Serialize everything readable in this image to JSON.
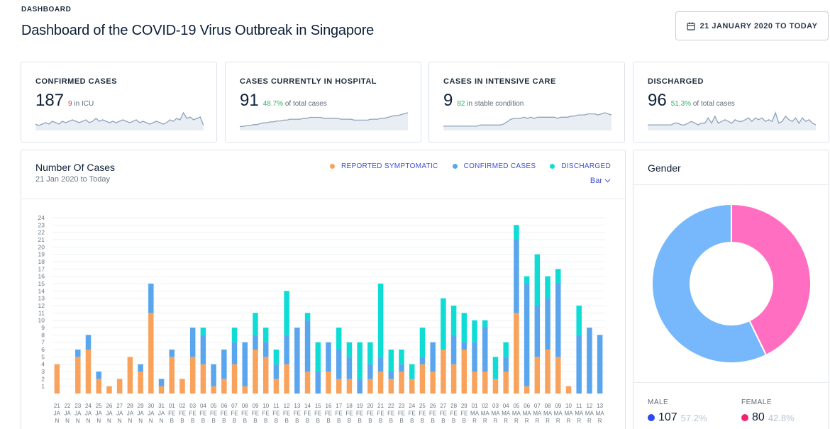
{
  "header": {
    "eyebrow": "DASHBOARD",
    "title": "Dashboard of the COVID-19 Virus Outbreak in Singapore",
    "date_range": "21 JANUARY 2020 TO TODAY"
  },
  "stats": [
    {
      "label": "CONFIRMED CASES",
      "value": "187",
      "highlight": "9",
      "highlight_color": "#e0304e",
      "suffix": "in ICU",
      "sparkline": [
        3,
        2,
        3,
        4,
        3,
        5,
        4,
        3,
        5,
        4,
        5,
        6,
        5,
        4,
        5,
        6,
        4,
        5,
        7,
        5,
        6,
        5,
        4,
        5,
        4,
        5,
        6,
        5,
        4,
        5,
        6,
        4,
        5,
        4,
        3,
        4,
        5,
        4,
        3,
        4,
        6,
        5,
        7,
        6,
        11,
        7,
        8,
        6,
        7,
        8,
        2
      ]
    },
    {
      "label": "CASES CURRENTLY IN HOSPITAL",
      "value": "91",
      "highlight": "48.7%",
      "highlight_color": "#2fb36b",
      "suffix": "of total cases",
      "sparkline": [
        2,
        2,
        3,
        3,
        4,
        4,
        5,
        6,
        6,
        7,
        7,
        8,
        8,
        9,
        9,
        10,
        10,
        10,
        10,
        11,
        11,
        12,
        12,
        12,
        12,
        11,
        11,
        11,
        11,
        11,
        10,
        10,
        10,
        10,
        9,
        9,
        9,
        9,
        9,
        10,
        10,
        10,
        11,
        11,
        12,
        13,
        14,
        14,
        15,
        16,
        17
      ]
    },
    {
      "label": "CASES IN INTENSIVE CARE",
      "value": "9",
      "highlight": "82",
      "highlight_color": "#2fb36b",
      "suffix": "in stable condition",
      "sparkline": [
        2,
        2,
        2,
        2,
        2,
        2,
        2,
        2,
        2,
        2,
        2,
        3,
        3,
        3,
        3,
        3,
        3,
        3,
        4,
        6,
        8,
        9,
        9,
        9,
        10,
        9,
        10,
        9,
        10,
        10,
        10,
        10,
        10,
        10,
        9,
        10,
        10,
        10,
        11,
        11,
        12,
        12,
        12,
        13,
        13,
        13,
        12,
        13,
        14,
        13,
        12
      ]
    },
    {
      "label": "DISCHARGED",
      "value": "96",
      "highlight": "51.3%",
      "highlight_color": "#2fb36b",
      "suffix": "of total cases",
      "sparkline": [
        2,
        2,
        2,
        2,
        2,
        2,
        2,
        2,
        3,
        3,
        2,
        2,
        3,
        4,
        3,
        2,
        3,
        3,
        6,
        3,
        7,
        3,
        4,
        5,
        4,
        3,
        5,
        4,
        4,
        5,
        6,
        4,
        6,
        5,
        6,
        4,
        5,
        4,
        9,
        3,
        4,
        7,
        5,
        4,
        6,
        3,
        6,
        4,
        5,
        3,
        2
      ]
    }
  ],
  "chart": {
    "title": "Number Of Cases",
    "subtitle": "21 Jan 2020 to Today",
    "type_label": "Bar",
    "legend": [
      {
        "label": "REPORTED SYMPTOMATIC",
        "color": "#f9a25c"
      },
      {
        "label": "CONFIRMED CASES",
        "color": "#5aa6ee"
      },
      {
        "label": "DISCHARGED",
        "color": "#10dcd6"
      }
    ]
  },
  "chart_data": {
    "type": "bar",
    "stacked": true,
    "ylim": [
      0,
      24
    ],
    "yticks": [
      1,
      2,
      3,
      4,
      5,
      6,
      7,
      8,
      9,
      10,
      11,
      12,
      13,
      14,
      15,
      16,
      17,
      18,
      19,
      20,
      21,
      22,
      23,
      24
    ],
    "grid": true,
    "legend_position": "top-right",
    "categories": [
      [
        "21",
        "JA",
        "N"
      ],
      [
        "22",
        "JA",
        "N"
      ],
      [
        "23",
        "JA",
        "N"
      ],
      [
        "24",
        "JA",
        "N"
      ],
      [
        "25",
        "JA",
        "N"
      ],
      [
        "26",
        "JA",
        "N"
      ],
      [
        "27",
        "JA",
        "N"
      ],
      [
        "28",
        "JA",
        "N"
      ],
      [
        "29",
        "JA",
        "N"
      ],
      [
        "30",
        "JA",
        "N"
      ],
      [
        "31",
        "JA",
        "N"
      ],
      [
        "01",
        "FE",
        "B"
      ],
      [
        "02",
        "FE",
        "B"
      ],
      [
        "03",
        "FE",
        "B"
      ],
      [
        "04",
        "FE",
        "B"
      ],
      [
        "05",
        "FE",
        "B"
      ],
      [
        "06",
        "FE",
        "B"
      ],
      [
        "07",
        "FE",
        "B"
      ],
      [
        "08",
        "FE",
        "B"
      ],
      [
        "09",
        "FE",
        "B"
      ],
      [
        "10",
        "FE",
        "B"
      ],
      [
        "11",
        "FE",
        "B"
      ],
      [
        "12",
        "FE",
        "B"
      ],
      [
        "13",
        "FE",
        "B"
      ],
      [
        "14",
        "FE",
        "B"
      ],
      [
        "15",
        "FE",
        "B"
      ],
      [
        "16",
        "FE",
        "B"
      ],
      [
        "17",
        "FE",
        "B"
      ],
      [
        "18",
        "FE",
        "B"
      ],
      [
        "19",
        "FE",
        "B"
      ],
      [
        "20",
        "FE",
        "B"
      ],
      [
        "21",
        "FE",
        "B"
      ],
      [
        "22",
        "FE",
        "B"
      ],
      [
        "23",
        "FE",
        "B"
      ],
      [
        "24",
        "FE",
        "B"
      ],
      [
        "25",
        "FE",
        "B"
      ],
      [
        "26",
        "FE",
        "B"
      ],
      [
        "27",
        "FE",
        "B"
      ],
      [
        "28",
        "FE",
        "B"
      ],
      [
        "29",
        "FE",
        "B"
      ],
      [
        "01",
        "MA",
        "R"
      ],
      [
        "02",
        "MA",
        "R"
      ],
      [
        "03",
        "MA",
        "R"
      ],
      [
        "04",
        "MA",
        "R"
      ],
      [
        "05",
        "MA",
        "R"
      ],
      [
        "06",
        "MA",
        "R"
      ],
      [
        "07",
        "MA",
        "R"
      ],
      [
        "08",
        "MA",
        "R"
      ],
      [
        "09",
        "MA",
        "R"
      ],
      [
        "10",
        "MA",
        "R"
      ],
      [
        "11",
        "MA",
        "R"
      ],
      [
        "12",
        "MA",
        "R"
      ],
      [
        "13",
        "MA",
        "R"
      ]
    ],
    "series": [
      {
        "name": "REPORTED SYMPTOMATIC",
        "color": "#f9a25c",
        "values": [
          4,
          0,
          5,
          6,
          2,
          1,
          2,
          5,
          3,
          11,
          1,
          5,
          2,
          5,
          4,
          1,
          2,
          4,
          1,
          6,
          5,
          2,
          4,
          0,
          3,
          0,
          3,
          2,
          2,
          0,
          2,
          3,
          2,
          3,
          2,
          4,
          3,
          6,
          4,
          6,
          3,
          3,
          2,
          3,
          11,
          1,
          5,
          6,
          5,
          1,
          0,
          0,
          0
        ]
      },
      {
        "name": "CONFIRMED CASES",
        "color": "#5aa6ee",
        "values": [
          0,
          0,
          1,
          2,
          1,
          0,
          0,
          0,
          1,
          4,
          1,
          1,
          0,
          4,
          4,
          3,
          4,
          3,
          6,
          2,
          2,
          2,
          4,
          9,
          7,
          3,
          4,
          4,
          3,
          2,
          2,
          2,
          1,
          1,
          0,
          1,
          4,
          0,
          4,
          1,
          4,
          6,
          0,
          2,
          10,
          14,
          7,
          7,
          10,
          0,
          8,
          9,
          8
        ]
      },
      {
        "name": "DISCHARGED",
        "color": "#10dcd6",
        "values": [
          0,
          0,
          0,
          0,
          0,
          0,
          0,
          0,
          0,
          0,
          0,
          0,
          0,
          0,
          1,
          0,
          0,
          2,
          0,
          3,
          2,
          2,
          6,
          0,
          1,
          4,
          0,
          3,
          2,
          5,
          3,
          10,
          3,
          2,
          2,
          4,
          0,
          7,
          4,
          4,
          3,
          1,
          3,
          2,
          2,
          1,
          7,
          3,
          2,
          0,
          4,
          0,
          0
        ]
      }
    ]
  },
  "gender": {
    "title": "Gender",
    "male": {
      "label": "MALE",
      "count": "107",
      "percent": "57.2%",
      "color": "#76b8fb",
      "dot_color": "#2b4bf2",
      "fraction": 0.572
    },
    "female": {
      "label": "FEMALE",
      "count": "80",
      "percent": "42.8%",
      "color": "#ff6ec1",
      "dot_color": "#f0256f",
      "fraction": 0.428
    }
  }
}
